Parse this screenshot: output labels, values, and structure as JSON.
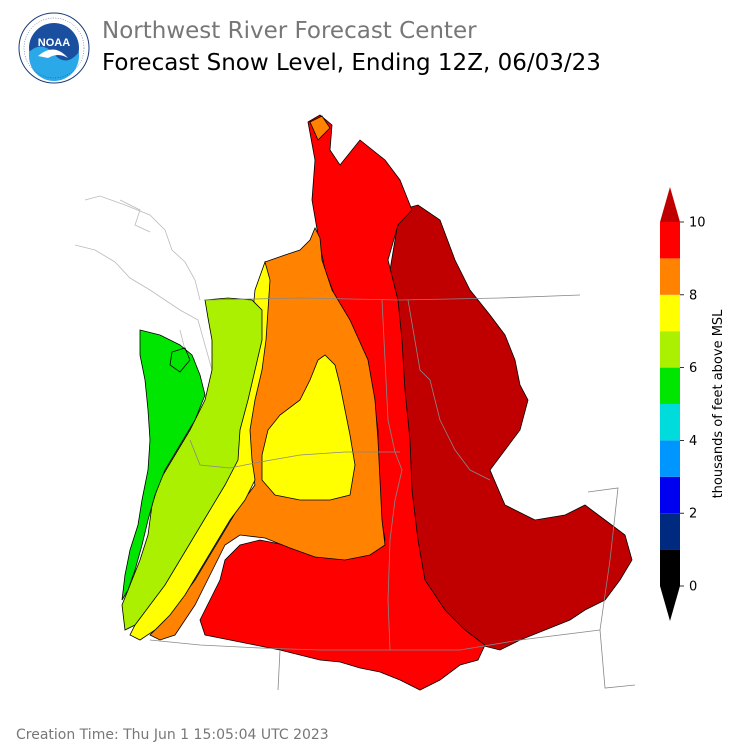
{
  "header": {
    "org_name": "Northwest River Forecast Center",
    "title": "Forecast Snow Level, Ending 12Z, 06/03/23"
  },
  "logo": {
    "text": "NOAA",
    "ring_text": "NATIONAL OCEANIC AND ATMOSPHERIC ADMINISTRATION · U.S. DEPARTMENT OF COMMERCE"
  },
  "colorbar": {
    "label": "thousands of feet above MSL",
    "ticks": [
      "0",
      "2",
      "4",
      "6",
      "8",
      "10"
    ],
    "bands": [
      {
        "from": 0,
        "to": 1,
        "color": "#000000"
      },
      {
        "from": 1,
        "to": 2,
        "color": "#002a7f"
      },
      {
        "from": 2,
        "to": 3,
        "color": "#0000f0"
      },
      {
        "from": 3,
        "to": 4,
        "color": "#0096ff"
      },
      {
        "from": 4,
        "to": 5,
        "color": "#00dcdc"
      },
      {
        "from": 5,
        "to": 6,
        "color": "#00e600"
      },
      {
        "from": 6,
        "to": 7,
        "color": "#aaf000"
      },
      {
        "from": 7,
        "to": 8,
        "color": "#ffff00"
      },
      {
        "from": 8,
        "to": 9,
        "color": "#ff8200"
      },
      {
        "from": 9,
        "to": 10,
        "color": "#ff0000"
      }
    ],
    "over_color": "#c00000",
    "under_color": "#000000"
  },
  "footer": {
    "creation_time": "Creation Time: Thu Jun 1 15:05:04 UTC 2023"
  }
}
